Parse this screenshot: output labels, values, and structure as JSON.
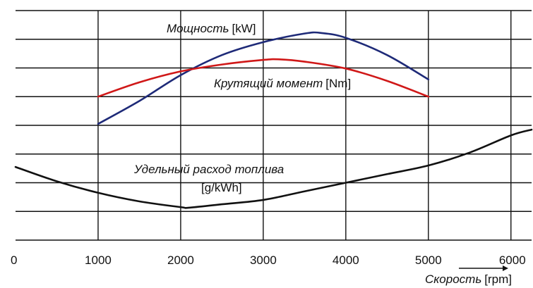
{
  "chart_data": {
    "type": "line",
    "xlabel": {
      "name": "Скорость",
      "unit": "[rpm]"
    },
    "xlim": [
      0,
      6250
    ],
    "ylim": [
      0,
      8
    ],
    "x_ticks": [
      "0",
      "1000",
      "2000",
      "3000",
      "4000",
      "5000",
      "6000"
    ],
    "y_gridlines": 8,
    "grid": true,
    "legend": "none",
    "series": [
      {
        "name": "Мощность",
        "unit": "[kW]",
        "color": "#1e2a78",
        "x": [
          1000,
          1500,
          2000,
          2500,
          3000,
          3500,
          3700,
          4000,
          4500,
          5000
        ],
        "y": [
          4.05,
          4.85,
          5.75,
          6.45,
          6.9,
          7.2,
          7.22,
          7.05,
          6.45,
          5.6
        ]
      },
      {
        "name": "Крутящий момент",
        "unit": "[Nm]",
        "color": "#d01818",
        "x": [
          1000,
          1500,
          2000,
          2500,
          3000,
          3200,
          3500,
          4000,
          4500,
          5000
        ],
        "y": [
          5.0,
          5.5,
          5.88,
          6.12,
          6.28,
          6.3,
          6.22,
          5.98,
          5.55,
          5.0
        ]
      },
      {
        "name": "Удельный расход топлива",
        "unit": "[g/kWh]",
        "color": "#111111",
        "x": [
          0,
          500,
          1000,
          1500,
          2000,
          2100,
          2500,
          3000,
          3500,
          4000,
          4500,
          5000,
          5500,
          6000,
          6250
        ],
        "y": [
          2.55,
          2.05,
          1.65,
          1.35,
          1.15,
          1.13,
          1.25,
          1.4,
          1.7,
          2.0,
          2.3,
          2.6,
          3.05,
          3.65,
          3.85
        ]
      }
    ]
  }
}
